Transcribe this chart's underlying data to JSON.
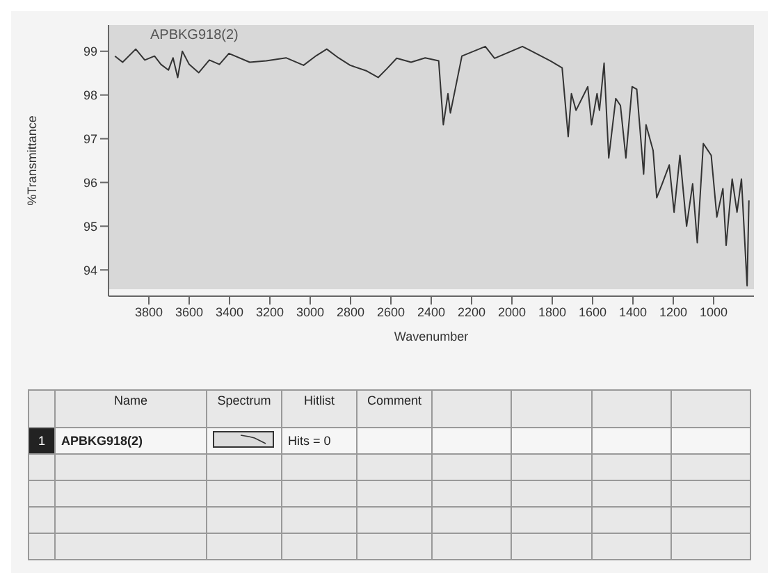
{
  "chart_data": {
    "type": "line",
    "xlabel": "Wavenumber",
    "ylabel": "%Transmittance",
    "xlim": [
      4000,
      800
    ],
    "xticks": [
      3800,
      3600,
      3400,
      3200,
      3000,
      2800,
      2600,
      2400,
      2200,
      2000,
      1800,
      1600,
      1400,
      1200,
      1000
    ],
    "ylim": [
      93.4,
      99.6
    ],
    "yticks": [
      94,
      95,
      96,
      97,
      98,
      99
    ],
    "x": [
      3968,
      3930,
      3865,
      3820,
      3772,
      3740,
      3703,
      3680,
      3657,
      3634,
      3600,
      3553,
      3500,
      3450,
      3403,
      3300,
      3218,
      3120,
      3033,
      2970,
      2918,
      2860,
      2802,
      2720,
      2663,
      2620,
      2571,
      2500,
      2430,
      2363,
      2340,
      2317,
      2305,
      2248,
      2132,
      2086,
      1948,
      1809,
      1751,
      1721,
      1705,
      1682,
      1624,
      1605,
      1578,
      1566,
      1543,
      1520,
      1485,
      1462,
      1435,
      1404,
      1381,
      1347,
      1335,
      1300,
      1282,
      1255,
      1220,
      1196,
      1167,
      1134,
      1104,
      1081,
      1051,
      1012,
      984,
      954,
      938,
      908,
      884,
      862,
      834,
      825
    ],
    "series": [
      {
        "name": "APBKG918(2)",
        "color": "#333333",
        "values": [
          98.89,
          98.75,
          99.05,
          98.8,
          98.89,
          98.7,
          98.57,
          98.85,
          98.4,
          99.0,
          98.7,
          98.51,
          98.8,
          98.7,
          98.95,
          98.75,
          98.78,
          98.85,
          98.68,
          98.9,
          99.05,
          98.85,
          98.68,
          98.55,
          98.4,
          98.6,
          98.84,
          98.75,
          98.85,
          98.78,
          97.32,
          98.03,
          97.59,
          98.89,
          99.11,
          98.84,
          99.11,
          98.78,
          98.62,
          97.05,
          98.03,
          97.65,
          98.19,
          97.32,
          98.03,
          97.65,
          98.73,
          96.56,
          97.92,
          97.76,
          96.56,
          98.19,
          98.13,
          96.19,
          97.32,
          96.73,
          95.65,
          95.97,
          96.4,
          95.32,
          96.62,
          95.0,
          95.97,
          94.62,
          96.89,
          96.62,
          95.21,
          95.86,
          94.56,
          96.08,
          95.32,
          96.08,
          93.64,
          95.59
        ]
      }
    ],
    "grid": false,
    "marker": "none",
    "line_style": "solid",
    "annotations": [
      "Name",
      "Spectrum",
      "Hitlist",
      "Comment",
      "1",
      "APBKG918(2)",
      "Hits = 0"
    ]
  }
}
